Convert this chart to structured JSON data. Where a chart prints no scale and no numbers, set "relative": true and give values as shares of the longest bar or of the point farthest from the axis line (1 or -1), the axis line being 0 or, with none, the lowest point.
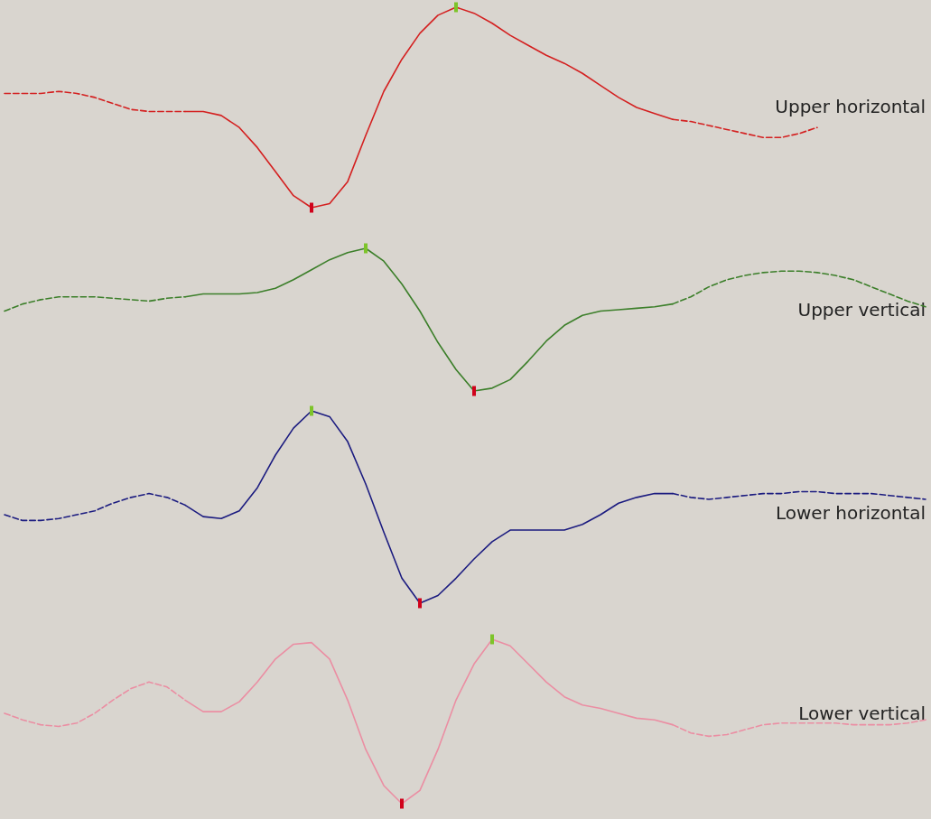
{
  "chart_data": [
    {
      "type": "line",
      "relative": true,
      "categories": [
        null,
        null,
        null,
        null,
        null,
        null,
        null,
        null,
        null,
        null,
        null,
        null,
        null,
        null,
        null,
        null,
        null,
        null,
        null,
        null,
        null,
        null,
        null,
        null,
        null,
        null,
        null,
        null,
        null,
        null,
        null,
        null,
        null,
        null,
        null,
        null,
        null,
        null,
        null,
        null,
        null,
        null,
        null,
        null,
        null,
        null,
        null,
        null,
        null,
        null,
        null,
        null
      ],
      "series": [
        {
          "color": "#d42020",
          "line_style": "dashed",
          "values": [
            0.57,
            0.57,
            0.57,
            0.58,
            0.57,
            0.55,
            0.52,
            0.49,
            0.48,
            0.48,
            0.48,
            null,
            null,
            null,
            null,
            null,
            null,
            null,
            null,
            null,
            null,
            null,
            null,
            null,
            null,
            null,
            null,
            null,
            null,
            null,
            null,
            null,
            null,
            null,
            null,
            null,
            null,
            null,
            null,
            null,
            null,
            null,
            null,
            null,
            null,
            null,
            null,
            null,
            null,
            null,
            null,
            null
          ]
        },
        {
          "name": "Upper horizontal",
          "color": "#d42020",
          "line_style": "solid",
          "values": [
            null,
            null,
            null,
            null,
            null,
            null,
            null,
            null,
            null,
            null,
            0.48,
            0.48,
            0.46,
            0.4,
            0.3,
            0.18,
            0.06,
            0,
            0.02,
            0.13,
            0.36,
            0.58,
            0.74,
            0.87,
            0.96,
            1,
            0.97,
            0.92,
            0.86,
            0.81,
            0.76,
            0.72,
            0.67,
            0.61,
            0.55,
            0.5,
            0.47,
            0.44,
            null,
            null,
            null,
            null,
            null,
            null,
            null,
            null,
            null,
            null,
            null,
            null,
            null,
            null
          ]
        },
        {
          "color": "#d42020",
          "line_style": "dashed",
          "values": [
            null,
            null,
            null,
            null,
            null,
            null,
            null,
            null,
            null,
            null,
            null,
            null,
            null,
            null,
            null,
            null,
            null,
            null,
            null,
            null,
            null,
            null,
            null,
            null,
            null,
            null,
            null,
            null,
            null,
            null,
            null,
            null,
            null,
            null,
            null,
            null,
            null,
            0.44,
            0.43,
            0.41,
            0.39,
            0.37,
            0.35,
            0.35,
            0.37,
            0.4,
            null,
            null,
            null,
            null,
            null,
            null
          ]
        }
      ]
    },
    {
      "type": "line",
      "relative": true,
      "categories": [
        null,
        null,
        null,
        null,
        null,
        null,
        null,
        null,
        null,
        null,
        null,
        null,
        null,
        null,
        null,
        null,
        null,
        null,
        null,
        null,
        null,
        null,
        null,
        null,
        null,
        null,
        null,
        null,
        null,
        null,
        null,
        null,
        null,
        null,
        null,
        null,
        null,
        null,
        null,
        null,
        null,
        null,
        null,
        null,
        null,
        null,
        null,
        null,
        null,
        null,
        null,
        null
      ],
      "series": [
        {
          "color": "#3c7f2a",
          "line_style": "dashed",
          "values": [
            0.56,
            0.61,
            0.64,
            0.66,
            0.66,
            0.66,
            0.65,
            0.64,
            0.63,
            0.65,
            0.66,
            null,
            null,
            null,
            null,
            null,
            null,
            null,
            null,
            null,
            null,
            null,
            null,
            null,
            null,
            null,
            null,
            null,
            null,
            null,
            null,
            null,
            null,
            null,
            null,
            null,
            null,
            null,
            null,
            null,
            null,
            null,
            null,
            null,
            null,
            null,
            null,
            null,
            null,
            null,
            null,
            null
          ]
        },
        {
          "name": "Upper vertical",
          "color": "#3c7f2a",
          "line_style": "solid",
          "values": [
            null,
            null,
            null,
            null,
            null,
            null,
            null,
            null,
            null,
            null,
            0.66,
            0.68,
            0.68,
            0.68,
            0.69,
            0.72,
            0.78,
            0.85,
            0.92,
            0.97,
            1,
            0.91,
            0.75,
            0.56,
            0.34,
            0.15,
            0,
            0.02,
            0.08,
            0.21,
            0.35,
            0.46,
            0.53,
            0.56,
            0.57,
            0.58,
            0.59,
            0.61,
            null,
            null,
            null,
            null,
            null,
            null,
            null,
            null,
            null,
            null,
            null,
            null,
            null,
            null
          ]
        },
        {
          "color": "#3c7f2a",
          "line_style": "dashed",
          "values": [
            null,
            null,
            null,
            null,
            null,
            null,
            null,
            null,
            null,
            null,
            null,
            null,
            null,
            null,
            null,
            null,
            null,
            null,
            null,
            null,
            null,
            null,
            null,
            null,
            null,
            null,
            null,
            null,
            null,
            null,
            null,
            null,
            null,
            null,
            null,
            null,
            null,
            0.61,
            0.66,
            0.73,
            0.78,
            0.81,
            0.83,
            0.84,
            0.84,
            0.83,
            0.81,
            0.78,
            0.73,
            0.68,
            0.63,
            0.59
          ]
        }
      ]
    },
    {
      "type": "line",
      "relative": true,
      "categories": [
        null,
        null,
        null,
        null,
        null,
        null,
        null,
        null,
        null,
        null,
        null,
        null,
        null,
        null,
        null,
        null,
        null,
        null,
        null,
        null,
        null,
        null,
        null,
        null,
        null,
        null,
        null,
        null,
        null,
        null,
        null,
        null,
        null,
        null,
        null,
        null,
        null,
        null,
        null,
        null,
        null,
        null,
        null,
        null,
        null,
        null,
        null,
        null,
        null,
        null,
        null,
        null
      ],
      "series": [
        {
          "color": "#1c1c80",
          "line_style": "dashed",
          "values": [
            0.46,
            0.43,
            0.43,
            0.44,
            0.46,
            0.48,
            0.52,
            0.55,
            0.57,
            0.55,
            0.51,
            null,
            null,
            null,
            null,
            null,
            null,
            null,
            null,
            null,
            null,
            null,
            null,
            null,
            null,
            null,
            null,
            null,
            null,
            null,
            null,
            null,
            null,
            null,
            null,
            null,
            null,
            null,
            null,
            null,
            null,
            null,
            null,
            null,
            null,
            null,
            null,
            null,
            null,
            null,
            null,
            null
          ]
        },
        {
          "name": "Lower horizontal",
          "color": "#1c1c80",
          "line_style": "solid",
          "values": [
            null,
            null,
            null,
            null,
            null,
            null,
            null,
            null,
            null,
            null,
            0.51,
            0.45,
            0.44,
            0.48,
            0.6,
            0.77,
            0.91,
            1,
            0.97,
            0.84,
            0.62,
            0.37,
            0.13,
            0,
            0.04,
            0.13,
            0.23,
            0.32,
            0.38,
            0.38,
            0.38,
            0.38,
            0.41,
            0.46,
            0.52,
            0.55,
            0.57,
            0.57,
            null,
            null,
            null,
            null,
            null,
            null,
            null,
            null,
            null,
            null,
            null,
            null,
            null,
            null
          ]
        },
        {
          "color": "#1c1c80",
          "line_style": "dashed",
          "values": [
            null,
            null,
            null,
            null,
            null,
            null,
            null,
            null,
            null,
            null,
            null,
            null,
            null,
            null,
            null,
            null,
            null,
            null,
            null,
            null,
            null,
            null,
            null,
            null,
            null,
            null,
            null,
            null,
            null,
            null,
            null,
            null,
            null,
            null,
            null,
            null,
            null,
            0.57,
            0.55,
            0.54,
            0.55,
            0.56,
            0.57,
            0.57,
            0.58,
            0.58,
            0.57,
            0.57,
            0.57,
            0.56,
            0.55,
            0.54
          ]
        }
      ]
    },
    {
      "type": "line",
      "relative": true,
      "categories": [
        null,
        null,
        null,
        null,
        null,
        null,
        null,
        null,
        null,
        null,
        null,
        null,
        null,
        null,
        null,
        null,
        null,
        null,
        null,
        null,
        null,
        null,
        null,
        null,
        null,
        null,
        null,
        null,
        null,
        null,
        null,
        null,
        null,
        null,
        null,
        null,
        null,
        null,
        null,
        null,
        null,
        null,
        null,
        null,
        null,
        null,
        null,
        null,
        null,
        null,
        null,
        null
      ],
      "series": [
        {
          "color": "#eb8ea3",
          "line_style": "dashed",
          "values": [
            0.55,
            0.51,
            0.48,
            0.47,
            0.49,
            0.55,
            0.63,
            0.7,
            0.74,
            0.71,
            0.63,
            null,
            null,
            null,
            null,
            null,
            null,
            null,
            null,
            null,
            null,
            null,
            null,
            null,
            null,
            null,
            null,
            null,
            null,
            null,
            null,
            null,
            null,
            null,
            null,
            null,
            null,
            null,
            null,
            null,
            null,
            null,
            null,
            null,
            null,
            null,
            null,
            null,
            null,
            null,
            null,
            null
          ]
        },
        {
          "name": "Lower vertical",
          "color": "#eb8ea3",
          "line_style": "solid",
          "values": [
            null,
            null,
            null,
            null,
            null,
            null,
            null,
            null,
            null,
            null,
            0.63,
            0.56,
            0.56,
            0.62,
            0.74,
            0.88,
            0.97,
            0.98,
            0.88,
            0.63,
            0.33,
            0.11,
            0,
            0.08,
            0.33,
            0.63,
            0.85,
            1,
            0.96,
            0.85,
            0.74,
            0.65,
            0.6,
            0.58,
            0.55,
            0.52,
            0.51,
            0.48,
            null,
            null,
            null,
            null,
            null,
            null,
            null,
            null,
            null,
            null,
            null,
            null,
            null,
            null
          ]
        },
        {
          "color": "#eb8ea3",
          "line_style": "dashed",
          "values": [
            null,
            null,
            null,
            null,
            null,
            null,
            null,
            null,
            null,
            null,
            null,
            null,
            null,
            null,
            null,
            null,
            null,
            null,
            null,
            null,
            null,
            null,
            null,
            null,
            null,
            null,
            null,
            null,
            null,
            null,
            null,
            null,
            null,
            null,
            null,
            null,
            null,
            0.48,
            0.43,
            0.41,
            0.42,
            0.45,
            0.48,
            0.49,
            0.49,
            0.49,
            0.49,
            0.48,
            0.48,
            0.48,
            0.49,
            0.51
          ]
        }
      ]
    }
  ]
}
